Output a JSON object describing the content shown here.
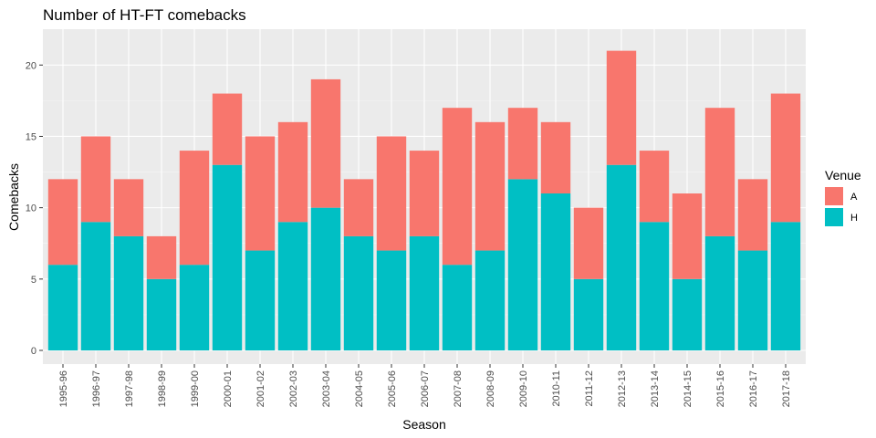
{
  "chart_data": {
    "type": "bar",
    "stacked": true,
    "title": "Number of HT-FT comebacks",
    "xlabel": "Season",
    "ylabel": "Comebacks",
    "ylim": [
      0,
      22
    ],
    "yticks": [
      0,
      5,
      10,
      15,
      20
    ],
    "grid": true,
    "legend": {
      "title": "Venue",
      "position": "right"
    },
    "categories": [
      "1995-96",
      "1996-97",
      "1997-98",
      "1998-99",
      "1999-00",
      "2000-01",
      "2001-02",
      "2002-03",
      "2003-04",
      "2004-05",
      "2005-06",
      "2006-07",
      "2007-08",
      "2008-09",
      "2009-10",
      "2010-11",
      "2011-12",
      "2012-13",
      "2013-14",
      "2014-15",
      "2015-16",
      "2016-17",
      "2017-18"
    ],
    "series": [
      {
        "name": "A",
        "color": "#F8766D",
        "values": [
          6,
          6,
          4,
          3,
          8,
          5,
          8,
          7,
          9,
          4,
          8,
          6,
          11,
          9,
          5,
          5,
          5,
          8,
          5,
          6,
          9,
          5,
          9
        ]
      },
      {
        "name": "H",
        "color": "#00BFC4",
        "values": [
          6,
          9,
          8,
          5,
          6,
          13,
          7,
          9,
          10,
          8,
          7,
          8,
          6,
          7,
          12,
          11,
          5,
          13,
          9,
          5,
          8,
          7,
          9
        ]
      }
    ]
  }
}
